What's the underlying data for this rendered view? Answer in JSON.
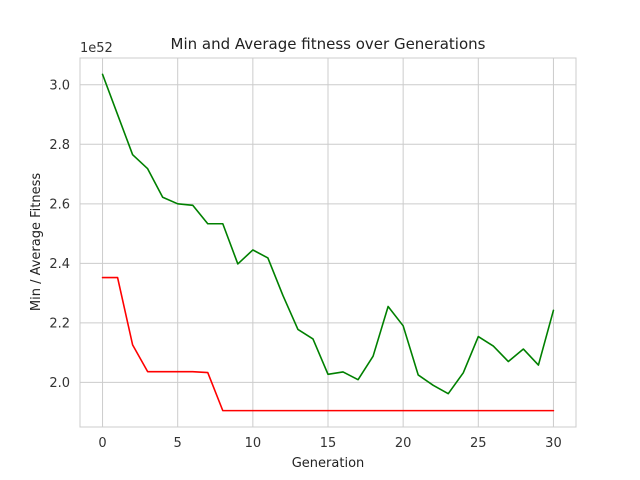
{
  "chart_data": {
    "type": "line",
    "title": "Min and Average fitness over Generations",
    "xlabel": "Generation",
    "ylabel": "Min / Average Fitness",
    "y_offset_label": "1e52",
    "xlim": [
      -1.5,
      31.5
    ],
    "ylim": [
      1.85,
      3.09
    ],
    "x_ticks": [
      0,
      5,
      10,
      15,
      20,
      25,
      30
    ],
    "y_ticks": [
      2.0,
      2.2,
      2.4,
      2.6,
      2.8,
      3.0
    ],
    "x_tick_labels": [
      "0",
      "5",
      "10",
      "15",
      "20",
      "25",
      "30"
    ],
    "y_tick_labels": [
      "2.0",
      "2.2",
      "2.4",
      "2.6",
      "2.8",
      "3.0"
    ],
    "grid": true,
    "x": [
      0,
      1,
      2,
      3,
      4,
      5,
      6,
      7,
      8,
      9,
      10,
      11,
      12,
      13,
      14,
      15,
      16,
      17,
      18,
      19,
      20,
      21,
      22,
      23,
      24,
      25,
      26,
      27,
      28,
      29,
      30
    ],
    "series": [
      {
        "color": "#008000",
        "values": [
          3.035,
          2.9,
          2.765,
          2.718,
          2.622,
          2.6,
          2.595,
          2.533,
          2.533,
          2.398,
          2.445,
          2.418,
          2.292,
          2.178,
          2.146,
          2.027,
          2.035,
          2.009,
          2.088,
          2.255,
          2.19,
          2.025,
          1.99,
          1.962,
          2.032,
          2.154,
          2.122,
          2.07,
          2.112,
          2.058,
          2.242
        ]
      },
      {
        "color": "#ff0000",
        "values": [
          2.352,
          2.352,
          2.126,
          2.036,
          2.036,
          2.036,
          2.036,
          2.033,
          1.905,
          1.905,
          1.905,
          1.905,
          1.905,
          1.905,
          1.905,
          1.905,
          1.905,
          1.905,
          1.905,
          1.905,
          1.905,
          1.905,
          1.905,
          1.905,
          1.905,
          1.905,
          1.905,
          1.905,
          1.905,
          1.905,
          1.905
        ]
      }
    ]
  }
}
